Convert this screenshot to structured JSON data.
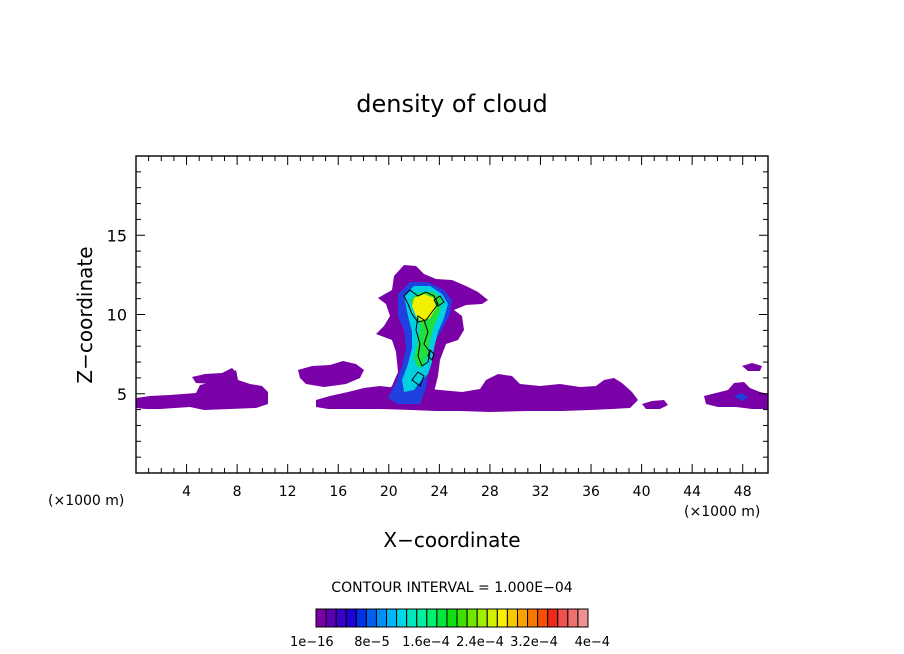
{
  "chart_data": {
    "type": "heatmap",
    "title": "density of cloud",
    "xlabel": "X−coordinate",
    "ylabel": "Z−coordinate",
    "x_unit_left": "(×1000 m)",
    "x_unit_right": "(×1000 m)",
    "xlim": [
      0,
      50
    ],
    "ylim": [
      0,
      20
    ],
    "x_ticks": [
      4,
      8,
      12,
      16,
      20,
      24,
      28,
      32,
      36,
      40,
      44,
      48
    ],
    "x_tick_labels": [
      "4",
      "8",
      "12",
      "16",
      "20",
      "24",
      "28",
      "32",
      "36",
      "40",
      "44",
      "48"
    ],
    "y_ticks": [
      5,
      10,
      15
    ],
    "y_tick_labels": [
      "5",
      "10",
      "15"
    ],
    "contour_interval_text": "CONTOUR INTERVAL = 1.000E−04",
    "colorbar_labels": [
      "1e−16",
      "8e−5",
      "1.6e−4",
      "2.4e−4",
      "3.2e−4",
      "4e−4"
    ],
    "colorbar_colors": [
      "#7a00a8",
      "#5a00b4",
      "#3a00c8",
      "#2000d8",
      "#0030e8",
      "#0060f0",
      "#0090f8",
      "#00b8f8",
      "#00d8e8",
      "#00e8c0",
      "#00f0a0",
      "#00f070",
      "#00e840",
      "#10e010",
      "#40e000",
      "#70e800",
      "#a0f000",
      "#d0f000",
      "#f8f000",
      "#f8c800",
      "#f8a000",
      "#f87800",
      "#f85000",
      "#f02818",
      "#f05050",
      "#f07070",
      "#f09090"
    ],
    "cloud_regions": [
      {
        "name": "low-band-left",
        "x": [
          0,
          10.5
        ],
        "z": [
          4.2,
          5.5
        ],
        "level": 1
      },
      {
        "name": "low-band-left-top",
        "x": [
          4.5,
          8
        ],
        "z": [
          5.5,
          6.6
        ],
        "level": 1
      },
      {
        "name": "low-band-mid",
        "x": [
          14,
          40
        ],
        "z": [
          4.2,
          5.3
        ],
        "level": 1
      },
      {
        "name": "mid-patch",
        "x": [
          12.5,
          18.5
        ],
        "z": [
          5.4,
          6.9
        ],
        "level": 1
      },
      {
        "name": "low-band-right-a",
        "x": [
          27,
          32
        ],
        "z": [
          5,
          6.2
        ],
        "level": 1
      },
      {
        "name": "low-band-right-b",
        "x": [
          40,
          42
        ],
        "z": [
          4.3,
          4.7
        ],
        "level": 1
      },
      {
        "name": "low-band-far-right",
        "x": [
          44,
          50
        ],
        "z": [
          4.2,
          5.8
        ],
        "level": 1
      },
      {
        "name": "anvil",
        "x": [
          19.5,
          28
        ],
        "z": [
          10.6,
          13
        ],
        "level": 1
      },
      {
        "name": "tower-outer",
        "x": [
          20,
          25
        ],
        "z": [
          4.3,
          12.5
        ],
        "level": 1
      },
      {
        "name": "tower-blue",
        "x": [
          20.3,
          24.5
        ],
        "z": [
          4.4,
          11.8
        ],
        "level": 4
      },
      {
        "name": "tower-cyan",
        "x": [
          21,
          24
        ],
        "z": [
          5.5,
          11.5
        ],
        "level": 8
      },
      {
        "name": "tower-green",
        "x": [
          21.8,
          23.6
        ],
        "z": [
          8,
          11.3
        ],
        "level": 12
      },
      {
        "name": "core-yellow",
        "x": [
          21.8,
          23.2
        ],
        "z": [
          9.8,
          11.3
        ],
        "level": 18
      }
    ]
  }
}
